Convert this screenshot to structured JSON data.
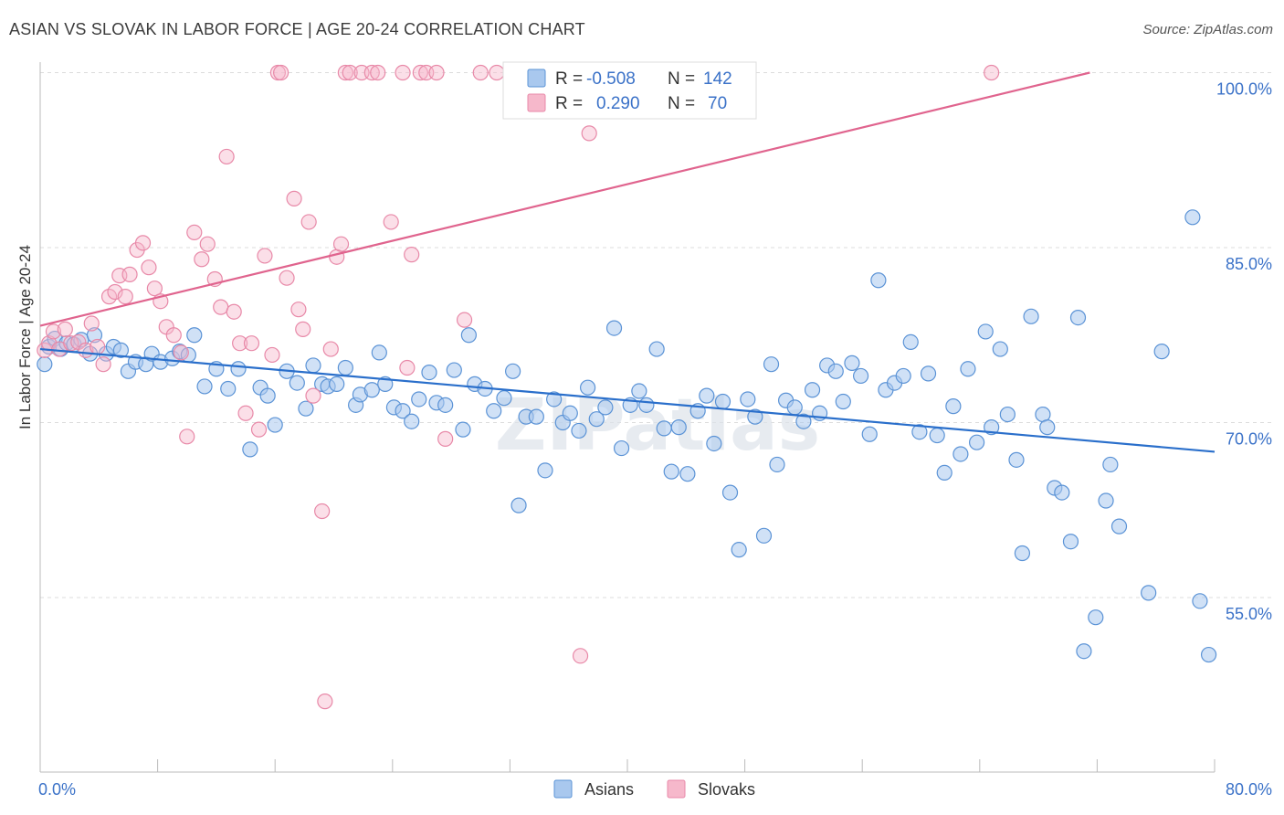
{
  "title": "ASIAN VS SLOVAK IN LABOR FORCE | AGE 20-24 CORRELATION CHART",
  "source": "Source: ZipAtlas.com",
  "watermark": "ZIPatlas",
  "colors": {
    "asians_fill": "#a9c8ee",
    "asians_stroke": "#5b93d6",
    "asians_line": "#2a6fcb",
    "slovaks_fill": "#f6b8cb",
    "slovaks_stroke": "#e889a8",
    "slovaks_line": "#e0648e",
    "tick_label": "#3b72c8",
    "grid": "#dcdcdc"
  },
  "legend": {
    "rows": [
      {
        "r_label": "R =",
        "r_value": "-0.508",
        "n_label": "N =",
        "n_value": "142"
      },
      {
        "r_label": "R =",
        "r_value": "0.290",
        "n_label": "N =",
        "n_value": "70"
      }
    ]
  },
  "bottom_legend": [
    "Asians",
    "Slovaks"
  ],
  "chart_data": {
    "type": "scatter",
    "title": "ASIAN VS SLOVAK IN LABOR FORCE | AGE 20-24 CORRELATION CHART",
    "xlabel": "",
    "ylabel": "In Labor Force | Age 20-24",
    "xlim": [
      0,
      80
    ],
    "ylim": [
      40,
      101
    ],
    "x_tick_labels": [
      "0.0%",
      "80.0%"
    ],
    "y_ticks": [
      55,
      70,
      85,
      100
    ],
    "y_tick_labels": [
      "55.0%",
      "70.0%",
      "85.0%",
      "100.0%"
    ],
    "grid": true,
    "legend_placement": "top-center",
    "series": [
      {
        "name": "Asians",
        "R": -0.508,
        "N": 142,
        "trend": {
          "x": [
            0,
            80
          ],
          "y": [
            76.3,
            67.5
          ]
        },
        "points": [
          [
            0.3,
            75.0
          ],
          [
            0.6,
            76.5
          ],
          [
            1.0,
            77.2
          ],
          [
            1.4,
            76.3
          ],
          [
            1.8,
            76.8
          ],
          [
            2.3,
            76.7
          ],
          [
            2.8,
            77.1
          ],
          [
            3.4,
            75.9
          ],
          [
            3.7,
            77.5
          ],
          [
            4.5,
            75.9
          ],
          [
            5.0,
            76.5
          ],
          [
            5.5,
            76.2
          ],
          [
            6.0,
            74.4
          ],
          [
            6.5,
            75.2
          ],
          [
            7.2,
            75.0
          ],
          [
            7.6,
            75.9
          ],
          [
            8.2,
            75.2
          ],
          [
            9.0,
            75.5
          ],
          [
            9.5,
            76.1
          ],
          [
            10.1,
            75.8
          ],
          [
            10.5,
            77.5
          ],
          [
            11.2,
            73.1
          ],
          [
            12.0,
            74.6
          ],
          [
            12.8,
            72.9
          ],
          [
            13.5,
            74.6
          ],
          [
            14.3,
            67.7
          ],
          [
            15.0,
            73.0
          ],
          [
            15.5,
            72.3
          ],
          [
            16.0,
            69.8
          ],
          [
            16.8,
            74.4
          ],
          [
            17.5,
            73.4
          ],
          [
            18.1,
            71.2
          ],
          [
            18.6,
            74.9
          ],
          [
            19.2,
            73.3
          ],
          [
            19.6,
            73.1
          ],
          [
            20.2,
            73.3
          ],
          [
            20.8,
            74.7
          ],
          [
            21.5,
            71.5
          ],
          [
            21.8,
            72.4
          ],
          [
            22.6,
            72.8
          ],
          [
            23.1,
            76.0
          ],
          [
            23.5,
            73.3
          ],
          [
            24.1,
            71.3
          ],
          [
            24.7,
            71.0
          ],
          [
            25.3,
            70.1
          ],
          [
            25.8,
            72.0
          ],
          [
            26.5,
            74.3
          ],
          [
            27.0,
            71.7
          ],
          [
            27.6,
            71.5
          ],
          [
            28.2,
            74.5
          ],
          [
            28.8,
            69.4
          ],
          [
            29.2,
            77.5
          ],
          [
            29.6,
            73.3
          ],
          [
            30.3,
            72.9
          ],
          [
            30.9,
            71.0
          ],
          [
            31.6,
            72.1
          ],
          [
            32.2,
            74.4
          ],
          [
            32.6,
            62.9
          ],
          [
            33.1,
            70.5
          ],
          [
            33.8,
            70.5
          ],
          [
            34.4,
            65.9
          ],
          [
            35.0,
            72.0
          ],
          [
            35.6,
            70.0
          ],
          [
            36.1,
            70.8
          ],
          [
            36.7,
            69.3
          ],
          [
            37.3,
            73.0
          ],
          [
            37.9,
            70.3
          ],
          [
            38.5,
            71.3
          ],
          [
            39.1,
            78.1
          ],
          [
            39.6,
            67.8
          ],
          [
            40.2,
            71.5
          ],
          [
            40.8,
            72.7
          ],
          [
            41.3,
            71.5
          ],
          [
            42.0,
            76.3
          ],
          [
            42.5,
            69.5
          ],
          [
            43.0,
            65.8
          ],
          [
            43.5,
            69.6
          ],
          [
            44.1,
            65.6
          ],
          [
            44.8,
            71.0
          ],
          [
            45.4,
            72.3
          ],
          [
            45.9,
            68.2
          ],
          [
            46.5,
            71.8
          ],
          [
            47.0,
            64.0
          ],
          [
            47.6,
            59.1
          ],
          [
            48.2,
            72.0
          ],
          [
            48.7,
            70.5
          ],
          [
            49.3,
            60.3
          ],
          [
            49.8,
            75.0
          ],
          [
            50.2,
            66.4
          ],
          [
            50.8,
            71.9
          ],
          [
            51.4,
            71.3
          ],
          [
            52.0,
            70.1
          ],
          [
            52.6,
            72.8
          ],
          [
            53.1,
            70.8
          ],
          [
            53.6,
            74.9
          ],
          [
            54.2,
            74.4
          ],
          [
            54.7,
            71.8
          ],
          [
            55.3,
            75.1
          ],
          [
            55.9,
            74.0
          ],
          [
            56.5,
            69.0
          ],
          [
            57.1,
            82.2
          ],
          [
            57.6,
            72.8
          ],
          [
            58.2,
            73.4
          ],
          [
            58.8,
            74.0
          ],
          [
            59.3,
            76.9
          ],
          [
            59.9,
            69.2
          ],
          [
            60.5,
            74.2
          ],
          [
            61.1,
            68.9
          ],
          [
            61.6,
            65.7
          ],
          [
            62.2,
            71.4
          ],
          [
            62.7,
            67.3
          ],
          [
            63.2,
            74.6
          ],
          [
            63.8,
            68.3
          ],
          [
            64.4,
            77.8
          ],
          [
            64.8,
            69.6
          ],
          [
            65.4,
            76.3
          ],
          [
            65.9,
            70.7
          ],
          [
            66.5,
            66.8
          ],
          [
            66.9,
            58.8
          ],
          [
            67.5,
            79.1
          ],
          [
            68.3,
            70.7
          ],
          [
            68.6,
            69.6
          ],
          [
            69.1,
            64.4
          ],
          [
            69.6,
            64.0
          ],
          [
            70.2,
            59.8
          ],
          [
            70.7,
            79.0
          ],
          [
            71.1,
            50.4
          ],
          [
            71.9,
            53.3
          ],
          [
            72.6,
            63.3
          ],
          [
            72.9,
            66.4
          ],
          [
            73.5,
            61.1
          ],
          [
            75.5,
            55.4
          ],
          [
            76.4,
            76.1
          ],
          [
            78.5,
            87.6
          ],
          [
            79.0,
            54.7
          ],
          [
            79.6,
            50.1
          ]
        ]
      },
      {
        "name": "Slovaks",
        "R": 0.29,
        "N": 70,
        "trend": {
          "x": [
            0,
            71.5
          ],
          "y": [
            78.3,
            100.0
          ]
        },
        "points": [
          [
            0.3,
            76.2
          ],
          [
            0.6,
            76.8
          ],
          [
            0.9,
            77.8
          ],
          [
            1.3,
            76.3
          ],
          [
            1.7,
            78.0
          ],
          [
            2.1,
            76.8
          ],
          [
            2.6,
            76.9
          ],
          [
            3.1,
            76.2
          ],
          [
            3.5,
            78.5
          ],
          [
            3.9,
            76.5
          ],
          [
            4.3,
            75.0
          ],
          [
            4.7,
            80.8
          ],
          [
            5.1,
            81.2
          ],
          [
            5.4,
            82.6
          ],
          [
            5.8,
            80.8
          ],
          [
            6.1,
            82.7
          ],
          [
            6.6,
            84.8
          ],
          [
            7.0,
            85.4
          ],
          [
            7.4,
            83.3
          ],
          [
            7.8,
            81.5
          ],
          [
            8.2,
            80.4
          ],
          [
            8.6,
            78.2
          ],
          [
            9.1,
            77.5
          ],
          [
            9.6,
            76.0
          ],
          [
            10.0,
            68.8
          ],
          [
            10.5,
            86.3
          ],
          [
            11.0,
            84.0
          ],
          [
            11.4,
            85.3
          ],
          [
            11.9,
            82.3
          ],
          [
            12.3,
            79.9
          ],
          [
            12.7,
            92.8
          ],
          [
            13.2,
            79.5
          ],
          [
            13.6,
            76.8
          ],
          [
            14.0,
            70.8
          ],
          [
            14.4,
            76.8
          ],
          [
            14.9,
            69.4
          ],
          [
            15.3,
            84.3
          ],
          [
            15.8,
            75.8
          ],
          [
            16.2,
            100.0
          ],
          [
            16.4,
            100.0
          ],
          [
            16.8,
            82.4
          ],
          [
            17.3,
            89.2
          ],
          [
            17.6,
            79.7
          ],
          [
            17.9,
            78.0
          ],
          [
            18.3,
            87.2
          ],
          [
            18.6,
            72.3
          ],
          [
            19.2,
            62.4
          ],
          [
            19.4,
            46.1
          ],
          [
            19.8,
            76.3
          ],
          [
            20.2,
            84.2
          ],
          [
            20.5,
            85.3
          ],
          [
            20.8,
            100.0
          ],
          [
            21.1,
            100.0
          ],
          [
            21.9,
            100.0
          ],
          [
            22.6,
            100.0
          ],
          [
            23.0,
            100.0
          ],
          [
            23.9,
            87.2
          ],
          [
            24.7,
            100.0
          ],
          [
            25.0,
            74.7
          ],
          [
            25.3,
            84.4
          ],
          [
            25.9,
            100.0
          ],
          [
            26.3,
            100.0
          ],
          [
            27.0,
            100.0
          ],
          [
            27.6,
            68.6
          ],
          [
            28.9,
            78.8
          ],
          [
            30.0,
            100.0
          ],
          [
            31.1,
            100.0
          ],
          [
            36.8,
            50.0
          ],
          [
            37.4,
            94.8
          ],
          [
            64.8,
            100.0
          ]
        ]
      }
    ]
  }
}
